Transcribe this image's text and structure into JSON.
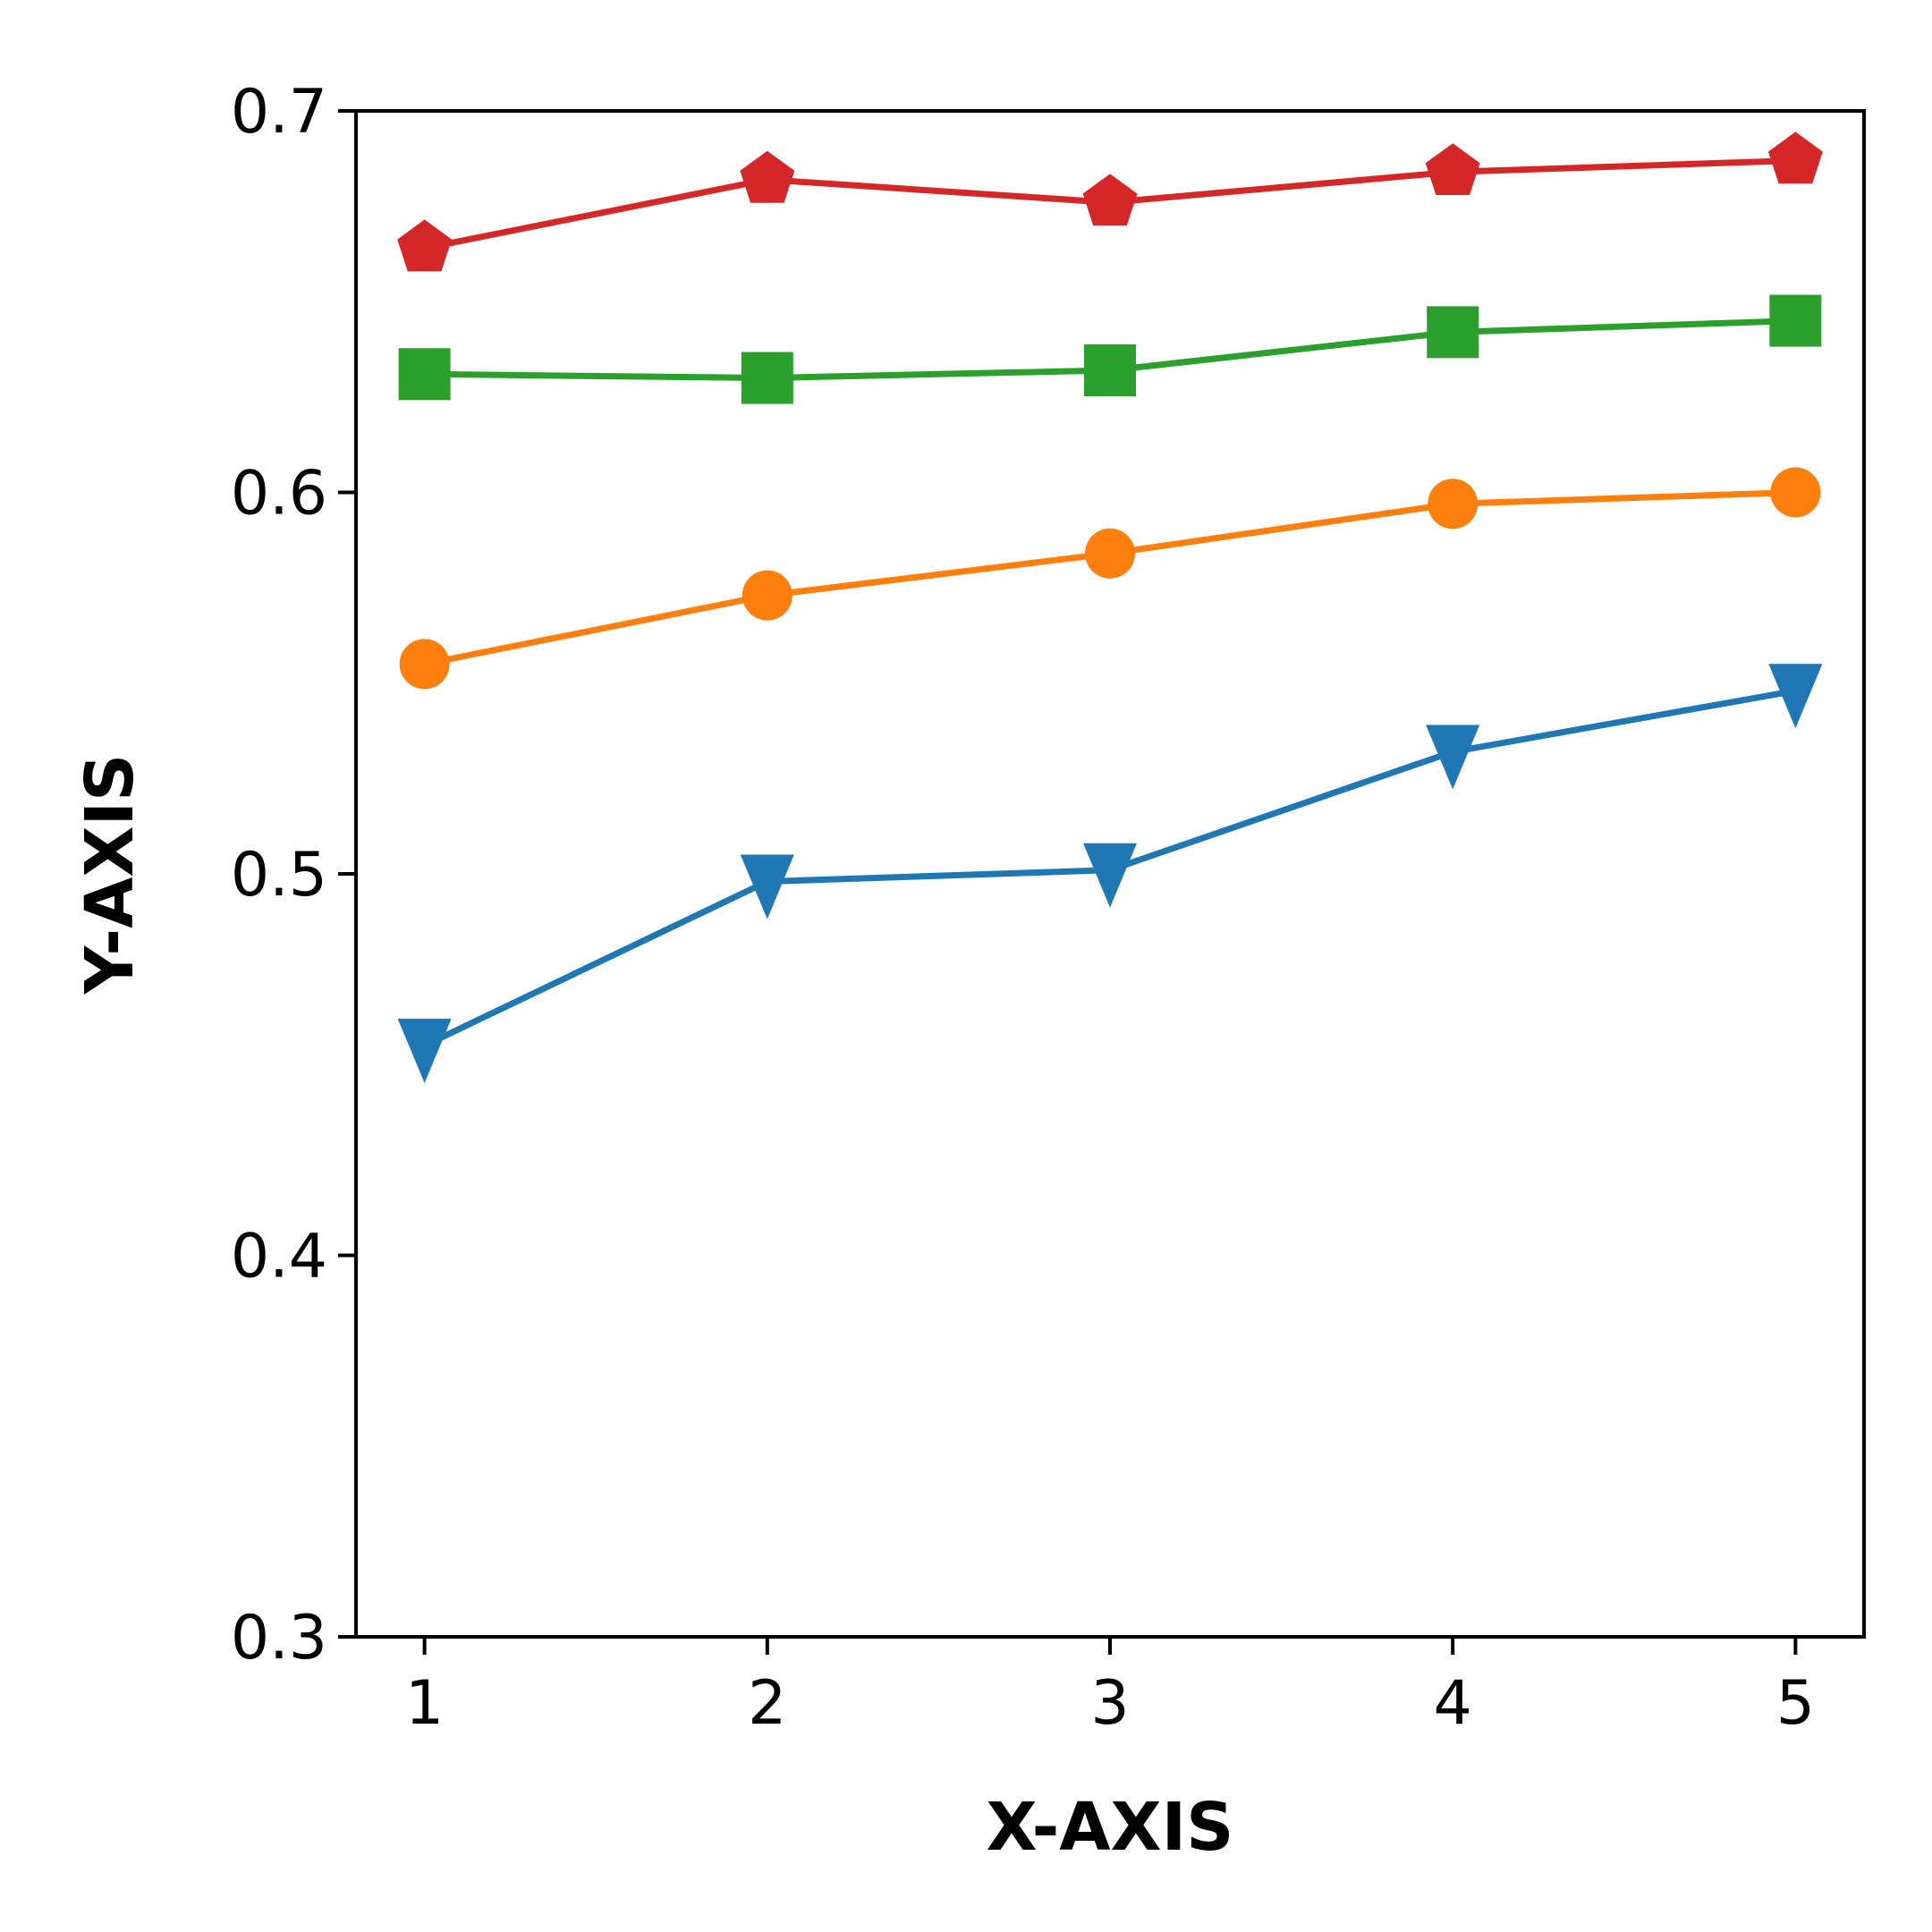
{
  "chart_data": {
    "type": "line",
    "xlabel": "X-AXIS",
    "ylabel": "Y-AXIS",
    "x": [
      1,
      2,
      3,
      4,
      5
    ],
    "xticks": [
      "1",
      "2",
      "3",
      "4",
      "5"
    ],
    "yticks": [
      "0.3",
      "0.4",
      "0.5",
      "0.6",
      "0.7"
    ],
    "ylim": [
      0.3,
      0.7
    ],
    "grid": false,
    "series": [
      {
        "values": [
          0.455,
          0.498,
          0.501,
          0.532,
          0.548
        ],
        "color": "#1f77b4",
        "marker": "triangle-down"
      },
      {
        "values": [
          0.555,
          0.573,
          0.584,
          0.597,
          0.6
        ],
        "color": "#ff7f0e",
        "marker": "circle"
      },
      {
        "values": [
          0.631,
          0.63,
          0.632,
          0.642,
          0.645
        ],
        "color": "#2ca02c",
        "marker": "square"
      },
      {
        "values": [
          0.664,
          0.682,
          0.676,
          0.684,
          0.687
        ],
        "color": "#d62728",
        "marker": "pentagon"
      }
    ]
  }
}
